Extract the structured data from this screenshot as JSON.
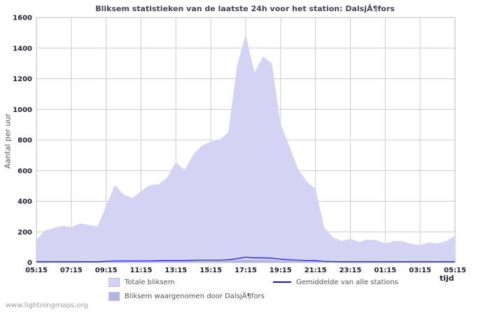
{
  "watermark": "www.lightningmaps.org",
  "chart_data": {
    "type": "area",
    "title": "Bliksem statistieken van de laatste 24h voor het station: DalsjÃ¶fors",
    "ylabel": "Aantal per uur",
    "xlabel": "tijd",
    "ylim": [
      0,
      1600
    ],
    "yticks": [
      0,
      200,
      400,
      600,
      800,
      1000,
      1200,
      1400,
      1600
    ],
    "xticks": [
      "05:15",
      "07:15",
      "09:15",
      "11:15",
      "13:15",
      "15:15",
      "17:15",
      "19:15",
      "21:15",
      "23:15",
      "01:15",
      "03:15",
      "05:15"
    ],
    "grid": true,
    "legend_position": "bottom",
    "x": [
      "05:15",
      "05:45",
      "06:15",
      "06:45",
      "07:15",
      "07:45",
      "08:15",
      "08:45",
      "09:15",
      "09:45",
      "10:15",
      "10:45",
      "11:15",
      "11:45",
      "12:15",
      "12:45",
      "13:15",
      "13:45",
      "14:15",
      "14:45",
      "15:15",
      "15:45",
      "16:15",
      "16:45",
      "17:15",
      "17:45",
      "18:15",
      "18:45",
      "19:15",
      "19:45",
      "20:15",
      "20:45",
      "21:15",
      "21:45",
      "22:15",
      "22:45",
      "23:15",
      "23:45",
      "00:15",
      "00:45",
      "01:15",
      "01:45",
      "02:15",
      "02:45",
      "03:15",
      "03:45",
      "04:15",
      "04:45",
      "05:15"
    ],
    "series": [
      {
        "name": "Totale bliksem",
        "kind": "area",
        "color": "#d3d3f3",
        "values": [
          150,
          210,
          225,
          240,
          230,
          255,
          245,
          235,
          370,
          505,
          445,
          420,
          465,
          505,
          510,
          555,
          655,
          605,
          705,
          765,
          790,
          800,
          850,
          1280,
          1490,
          1240,
          1345,
          1300,
          905,
          760,
          610,
          530,
          480,
          230,
          165,
          140,
          155,
          135,
          150,
          145,
          125,
          140,
          140,
          120,
          115,
          130,
          125,
          140,
          175
        ]
      },
      {
        "name": "Gemiddelde van alle stations",
        "kind": "line",
        "color": "#1414cc",
        "values": [
          5,
          5,
          5,
          5,
          5,
          5,
          5,
          5,
          8,
          10,
          10,
          10,
          10,
          10,
          12,
          12,
          12,
          12,
          14,
          15,
          15,
          15,
          18,
          25,
          35,
          30,
          30,
          28,
          22,
          18,
          15,
          12,
          12,
          8,
          6,
          5,
          5,
          5,
          5,
          5,
          5,
          5,
          5,
          5,
          5,
          5,
          5,
          5,
          5
        ]
      },
      {
        "name": "Bliksem waargenomen door DalsjÃ¶fors",
        "kind": "area",
        "color": "#b3b3e6",
        "values": [
          3,
          4,
          4,
          4,
          4,
          4,
          4,
          4,
          5,
          6,
          6,
          6,
          6,
          6,
          7,
          7,
          7,
          7,
          8,
          8,
          8,
          8,
          10,
          14,
          18,
          15,
          16,
          15,
          12,
          10,
          8,
          7,
          7,
          5,
          4,
          3,
          3,
          3,
          3,
          3,
          3,
          3,
          3,
          3,
          3,
          3,
          3,
          3,
          4
        ]
      }
    ]
  }
}
